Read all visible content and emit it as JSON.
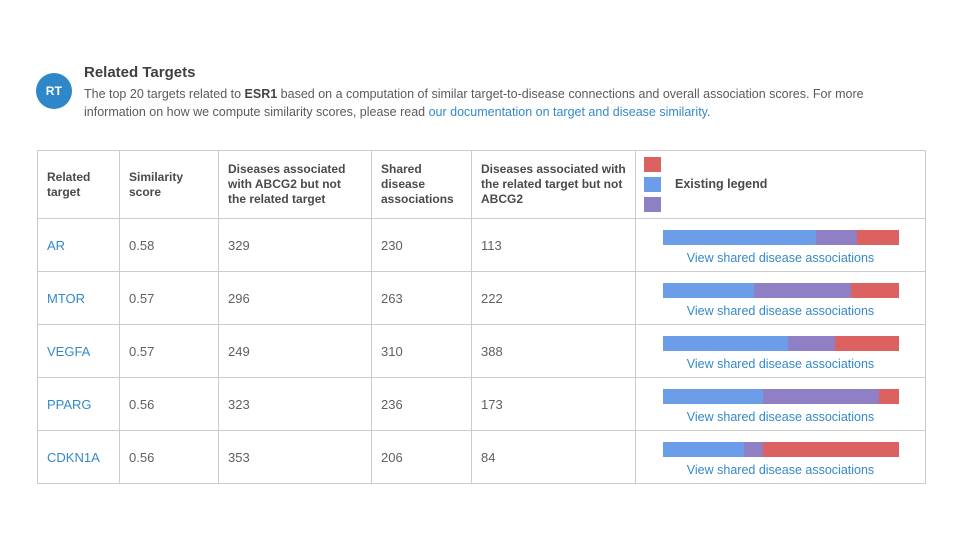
{
  "header": {
    "badge": "RT",
    "title": "Related Targets",
    "description": {
      "part1": "The top 20 targets related to ",
      "bold": "ESR1",
      "part2": " based on a computation of similar target-to-disease connections and overall association scores. For more information on how we compute similarity scores, please read ",
      "link": "our documentation on target and disease similarity",
      "part3": "."
    }
  },
  "colors": {
    "badge_blue": "#2e87c8",
    "link_blue": "#3489ca",
    "bar_blue": "#6c9de8",
    "bar_purple": "#8f7fc5",
    "bar_red": "#dc6161",
    "table_border": "#cccccc"
  },
  "table": {
    "headers": [
      "Related target",
      "Similarity score",
      "Diseases associated with ABCG2 but not the related target",
      "Shared disease associations",
      "Diseases associated with the related target but not ABCG2"
    ],
    "legend_label": "Existing legend",
    "link_label": "View shared disease associations",
    "rows": [
      {
        "target": "AR",
        "score": "0.58",
        "abcg2_only": "329",
        "shared": "230",
        "related_only": "113"
      },
      {
        "target": "MTOR",
        "score": "0.57",
        "abcg2_only": "296",
        "shared": "263",
        "related_only": "222"
      },
      {
        "target": "VEGFA",
        "score": "0.57",
        "abcg2_only": "249",
        "shared": "310",
        "related_only": "388"
      },
      {
        "target": "PPARG",
        "score": "0.56",
        "abcg2_only": "323",
        "shared": "236",
        "related_only": "173"
      },
      {
        "target": "CDKN1A",
        "score": "0.56",
        "abcg2_only": "353",
        "shared": "206",
        "related_only": "84"
      }
    ]
  },
  "chart_data": {
    "type": "bar",
    "subtype": "horizontal-stacked",
    "title": "Existing legend",
    "categories": [
      "AR",
      "MTOR",
      "VEGFA",
      "PPARG",
      "CDKN1A"
    ],
    "series": [
      {
        "name": "blue-segment",
        "color": "#6c9de8",
        "percents": [
          65.0,
          38.5,
          53.0,
          42.5,
          34.5
        ]
      },
      {
        "name": "purple-segment",
        "color": "#8f7fc5",
        "percents": [
          17.0,
          41.0,
          20.0,
          49.0,
          8.0
        ]
      },
      {
        "name": "red-segment",
        "color": "#dc6161",
        "percents": [
          18.0,
          20.5,
          27.0,
          8.5,
          57.5
        ]
      }
    ],
    "table_values": {
      "similarity_scores": [
        0.58,
        0.57,
        0.57,
        0.56,
        0.56
      ],
      "diseases_abcg2_only": [
        329,
        296,
        249,
        323,
        353
      ],
      "shared_disease_associations": [
        230,
        263,
        310,
        236,
        206
      ],
      "diseases_related_target_only": [
        113,
        222,
        388,
        173,
        84
      ]
    },
    "legend_position": "table-header-right",
    "grid": false
  }
}
